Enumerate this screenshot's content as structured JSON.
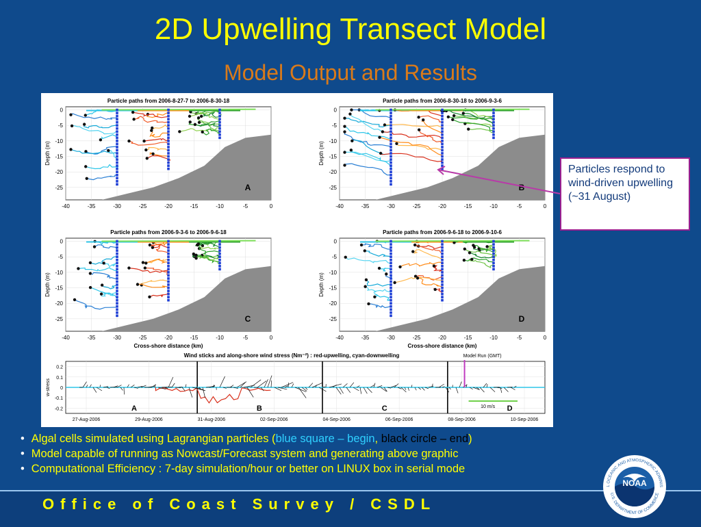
{
  "slide": {
    "title": "2D Upwelling Transect Model",
    "subtitle": "Model Output and Results",
    "callout": "Particles respond to wind-driven upwelling (~31 August)",
    "bullets": {
      "b1_pre": "Algal cells simulated using Lagrangian particles (",
      "b1_blue": "blue square – begin",
      "b1_comma": ", ",
      "b1_black": "black circle – end",
      "b1_post": ")",
      "b2": "Model capable of running as Nowcast/Forecast system and generating above graphic",
      "b3": "Computational Efficiency : 7-day simulation/hour or better on LINUX box in serial mode"
    },
    "footer": "Office of Coast Survey / CSDL",
    "logo_text": "NOAA",
    "logo_ring_top": "NATIONAL OCEANIC AND ATMOSPHERIC ADMINISTRATION",
    "logo_ring_bottom": "U.S. DEPARTMENT OF COMMERCE",
    "colors": {
      "background": "#0f4a8c",
      "title": "#ffff00",
      "subtitle": "#d97a1a",
      "bullet_text": "#ffff00",
      "highlight_blue": "#2fd0ff",
      "callout_border": "#9b1f8f"
    }
  },
  "chart_data": [
    {
      "type": "scatter",
      "panel": "A",
      "title": "Particle paths from 2006-8-27-7 to 2006-8-30-18",
      "ylabel": "Depth (m)",
      "xlabel": "",
      "xlim": [
        -40,
        0
      ],
      "ylim": [
        -29,
        1
      ],
      "xticks": [
        -40,
        -35,
        -30,
        -25,
        -20,
        -15,
        -10,
        -5,
        0
      ],
      "yticks": [
        0,
        -5,
        -10,
        -15,
        -20,
        -25
      ],
      "bathymetry": {
        "x": [
          -33,
          -28,
          -23,
          -18,
          -13,
          -9,
          -5,
          0
        ],
        "y": [
          -29,
          -27,
          -25,
          -22,
          -18,
          -12,
          -9,
          -8
        ]
      },
      "release_x": [
        -30,
        -20,
        -10
      ]
    },
    {
      "type": "scatter",
      "panel": "B",
      "title": "Particle paths from 2006-8-30-18 to 2006-9-3-6",
      "ylabel": "Depth (m)",
      "xlabel": "",
      "xlim": [
        -40,
        0
      ],
      "ylim": [
        -29,
        1
      ],
      "xticks": [
        -40,
        -35,
        -30,
        -25,
        -20,
        -15,
        -10,
        -5,
        0
      ],
      "yticks": [
        0,
        -5,
        -10,
        -15,
        -20,
        -25
      ],
      "bathymetry": {
        "x": [
          -33,
          -28,
          -23,
          -18,
          -13,
          -9,
          -5,
          0
        ],
        "y": [
          -29,
          -27,
          -25,
          -22,
          -18,
          -12,
          -9,
          -8
        ]
      },
      "release_x": [
        -30,
        -20,
        -10
      ]
    },
    {
      "type": "scatter",
      "panel": "C",
      "title": "Particle paths from 2006-9-3-6 to 2006-9-6-18",
      "ylabel": "Depth (m)",
      "xlabel": "Cross-shore distance (km)",
      "xlim": [
        -40,
        0
      ],
      "ylim": [
        -29,
        1
      ],
      "xticks": [
        -40,
        -35,
        -30,
        -25,
        -20,
        -15,
        -10,
        -5,
        0
      ],
      "yticks": [
        0,
        -5,
        -10,
        -15,
        -20,
        -25
      ],
      "bathymetry": {
        "x": [
          -33,
          -28,
          -23,
          -18,
          -13,
          -9,
          -5,
          0
        ],
        "y": [
          -29,
          -27,
          -25,
          -22,
          -18,
          -12,
          -9,
          -8
        ]
      },
      "release_x": [
        -30,
        -20,
        -10
      ]
    },
    {
      "type": "scatter",
      "panel": "D",
      "title": "Particle paths from 2006-9-6-18 to 2006-9-10-6",
      "ylabel": "Depth (m)",
      "xlabel": "Cross-shore distance (km)",
      "xlim": [
        -40,
        0
      ],
      "ylim": [
        -29,
        1
      ],
      "xticks": [
        -40,
        -35,
        -30,
        -25,
        -20,
        -15,
        -10,
        -5,
        0
      ],
      "yticks": [
        0,
        -5,
        -10,
        -15,
        -20,
        -25
      ],
      "bathymetry": {
        "x": [
          -33,
          -28,
          -23,
          -18,
          -13,
          -9,
          -5,
          0
        ],
        "y": [
          -29,
          -27,
          -25,
          -22,
          -18,
          -12,
          -9,
          -8
        ]
      },
      "release_x": [
        -30,
        -20,
        -10
      ]
    },
    {
      "type": "line",
      "panel": "wind",
      "title": "Wind sticks and along-shore wind stress (Nm⁻²) : red-upwelling, cyan-downwelling",
      "ylabel": "w-stress",
      "ylim": [
        -0.25,
        0.25
      ],
      "yticks": [
        0.2,
        0.1,
        0,
        -0.1,
        -0.2
      ],
      "x_dates": [
        "27-Aug-2006",
        "29-Aug-2006",
        "31-Aug-2006",
        "02-Sep-2006",
        "04-Sep-2006",
        "06-Sep-2006",
        "08-Sep-2006",
        "10-Sep-2006"
      ],
      "period_labels": [
        "A",
        "B",
        "C",
        "D"
      ],
      "model_run_label": "Model Run (GMT)",
      "scale_label": "10 m/s"
    }
  ]
}
